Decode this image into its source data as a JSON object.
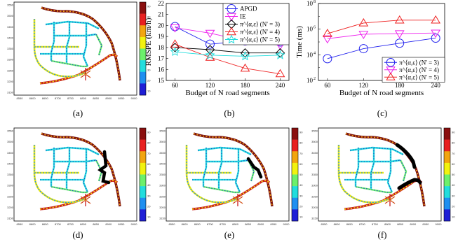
{
  "figure": {
    "panel_labels": [
      "(a)",
      "(b)",
      "(c)",
      "(d)",
      "(e)",
      "(f)"
    ],
    "colors": {
      "apgd": "#2222ee",
      "ie": "#ee22ee",
      "n3": "#000000",
      "n4": "#ee2222",
      "n5": "#22dddd",
      "colorbar": [
        "#1f1fd6",
        "#1f8ff0",
        "#22dddd",
        "#6cf06c",
        "#f2f20f",
        "#f2a50f",
        "#e82020",
        "#8a0f0f"
      ]
    }
  },
  "road_maps": {
    "x_ticks": [
      "8550",
      "8600",
      "8650",
      "8700",
      "8750",
      "8800",
      "8850",
      "8900",
      "8950",
      "9000"
    ],
    "y_ticks": [
      "3550",
      "3500",
      "3450",
      "3400",
      "3350",
      "3300",
      "3250",
      "3200",
      "3150"
    ],
    "colorbar_ticks": [
      "90",
      "80",
      "70",
      "60",
      "50",
      "40",
      "30",
      "20",
      "10"
    ]
  },
  "chart_data": [
    {
      "type": "line",
      "panel": "(b)",
      "xlabel": "Budget of N road segments",
      "ylabel": "RMSPE (km/h)",
      "x": [
        60,
        120,
        180,
        240
      ],
      "xlim": [
        45,
        255
      ],
      "ylim": [
        15,
        22
      ],
      "yticks": [
        "15",
        "16",
        "17",
        "18",
        "19",
        "20",
        "21",
        "22"
      ],
      "xticks": [
        "60",
        "120",
        "180",
        "240"
      ],
      "legend_position": "top-right",
      "series": [
        {
          "name": "APGD",
          "marker": "circle",
          "color": "#2222ee",
          "values": [
            19.9,
            18.3,
            18.6,
            18.5
          ]
        },
        {
          "name": "IE",
          "marker": "triangle-down",
          "color": "#ee22ee",
          "values": [
            19.8,
            19.3,
            18.6,
            18.2
          ]
        },
        {
          "name": "π^⟨α,ε⟩ (N' = 3)",
          "marker": "diamond",
          "color": "#000000",
          "values": [
            18.0,
            17.8,
            17.5,
            17.5
          ]
        },
        {
          "name": "π^⟨α,ε⟩ (N' = 4)",
          "marker": "triangle-up",
          "color": "#ee2222",
          "values": [
            18.3,
            17.1,
            16.1,
            15.6
          ]
        },
        {
          "name": "π^⟨α,ε⟩ (N' = 5)",
          "marker": "star",
          "color": "#22dddd",
          "values": [
            17.6,
            17.3,
            17.2,
            17.3
          ]
        }
      ]
    },
    {
      "type": "line",
      "panel": "(c)",
      "xlabel": "Budget of N road segments",
      "ylabel": "Time (ms)",
      "yscale": "log",
      "x": [
        60,
        120,
        180,
        240
      ],
      "xlim": [
        45,
        255
      ],
      "ylim": [
        100,
        100000000
      ],
      "yticks": [
        {
          "base": "10",
          "exp": "2"
        },
        {
          "base": "10",
          "exp": "4"
        },
        {
          "base": "10",
          "exp": "6"
        },
        {
          "base": "10",
          "exp": "8"
        }
      ],
      "xticks": [
        "60",
        "120",
        "180",
        "240"
      ],
      "legend_position": "bottom-right",
      "series": [
        {
          "name": "π^⟨α,ε⟩ (N' = 3)",
          "marker": "circle",
          "color": "#2222ee",
          "values": [
            5000,
            30000,
            80000,
            200000
          ]
        },
        {
          "name": "π^⟨α,ε⟩ (N' = 4)",
          "marker": "triangle-down",
          "color": "#ee22ee",
          "values": [
            180000,
            400000,
            450000,
            500000
          ]
        },
        {
          "name": "π^⟨α,ε⟩ (N' = 5)",
          "marker": "triangle-up",
          "color": "#ee2222",
          "values": [
            450000,
            3000000,
            5000000,
            5000000
          ]
        }
      ]
    }
  ]
}
